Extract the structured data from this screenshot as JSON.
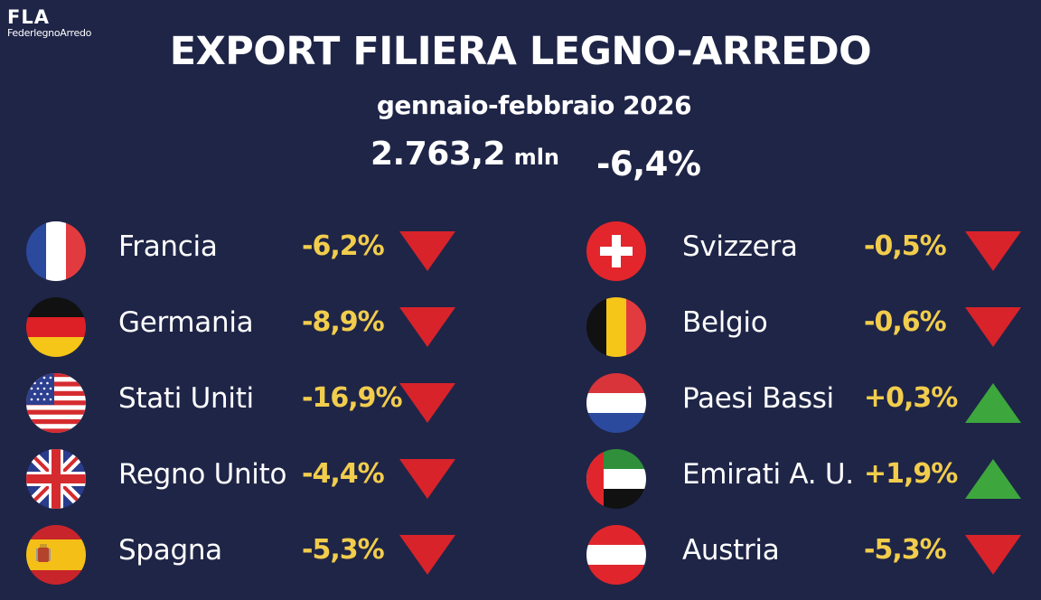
{
  "logo": {
    "mark": "FLA",
    "name": "FederlegnoArredo"
  },
  "header": {
    "title": "EXPORT FILIERA LEGNO-ARREDO",
    "period": "gennaio-febbraio 2026",
    "total_value": "2.763,2",
    "total_unit": "mln",
    "total_change": "-6,4%"
  },
  "colors": {
    "background": "#1f2547",
    "change_text": "#f2cd4c",
    "down_arrow": "#d8232a",
    "up_arrow": "#3da63d"
  },
  "countries": [
    {
      "name": "Francia",
      "change": "-6,2%",
      "trend": "down",
      "flag_icon": "france-flag-icon"
    },
    {
      "name": "Germania",
      "change": "-8,9%",
      "trend": "down",
      "flag_icon": "germany-flag-icon"
    },
    {
      "name": "Stati Uniti",
      "change": "-16,9%",
      "trend": "down",
      "flag_icon": "usa-flag-icon"
    },
    {
      "name": "Regno Unito",
      "change": "-4,4%",
      "trend": "down",
      "flag_icon": "uk-flag-icon"
    },
    {
      "name": "Spagna",
      "change": "-5,3%",
      "trend": "down",
      "flag_icon": "spain-flag-icon"
    },
    {
      "name": "Svizzera",
      "change": "-0,5%",
      "trend": "down",
      "flag_icon": "switzerland-flag-icon"
    },
    {
      "name": "Belgio",
      "change": "-0,6%",
      "trend": "down",
      "flag_icon": "belgium-flag-icon"
    },
    {
      "name": "Paesi Bassi",
      "change": "+0,3%",
      "trend": "up",
      "flag_icon": "netherlands-flag-icon"
    },
    {
      "name": "Emirati A. U.",
      "change": "+1,9%",
      "trend": "up",
      "flag_icon": "uae-flag-icon"
    },
    {
      "name": "Austria",
      "change": "-5,3%",
      "trend": "down",
      "flag_icon": "austria-flag-icon"
    }
  ]
}
